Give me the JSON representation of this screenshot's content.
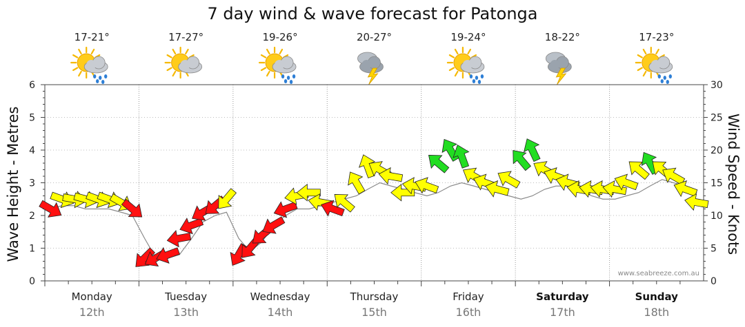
{
  "chart_data": {
    "type": "line",
    "title": "7 day wind & wave forecast for Patonga",
    "ylabel_left": "Wave Height - Metres",
    "ylabel_right": "Wind Speed - Knots",
    "ylim_left": [
      0,
      6
    ],
    "ylim_right": [
      0,
      30
    ],
    "yticks_left": [
      "0",
      "1",
      "2",
      "3",
      "4",
      "5",
      "6"
    ],
    "yticks_right": [
      "0",
      "5",
      "10",
      "15",
      "20",
      "25",
      "30"
    ],
    "grid": true,
    "watermark": "www.seabreeze.com.au",
    "days": [
      {
        "name": "Monday",
        "date": "12th",
        "temp": "17-21°",
        "icon": "sun-cloud-rain-icon",
        "bold": false
      },
      {
        "name": "Tuesday",
        "date": "13th",
        "temp": "17-27°",
        "icon": "sun-cloud-icon",
        "bold": false
      },
      {
        "name": "Wednesday",
        "date": "14th",
        "temp": "19-26°",
        "icon": "sun-cloud-rain-icon",
        "bold": false
      },
      {
        "name": "Thursday",
        "date": "15th",
        "temp": "20-27°",
        "icon": "cloud-storm-icon",
        "bold": false
      },
      {
        "name": "Friday",
        "date": "16th",
        "temp": "19-24°",
        "icon": "sun-cloud-rain-icon",
        "bold": false
      },
      {
        "name": "Saturday",
        "date": "17th",
        "temp": "18-22°",
        "icon": "cloud-storm-icon",
        "bold": true
      },
      {
        "name": "Sunday",
        "date": "18th",
        "temp": "17-23°",
        "icon": "sun-cloud-rain-icon",
        "bold": true
      }
    ],
    "wave_height": {
      "name": "Wave Height",
      "unit": "m",
      "x_days": [
        0,
        0.12,
        0.25,
        0.37,
        0.5,
        0.62,
        0.75,
        0.87,
        1.0,
        1.12,
        1.25,
        1.37,
        1.5,
        1.62,
        1.75,
        1.87,
        2.0,
        2.12,
        2.25,
        2.37,
        2.5,
        2.62,
        2.75,
        2.87,
        3.0,
        3.12,
        3.25,
        3.37,
        3.5,
        3.62,
        3.75,
        3.87,
        4.0,
        4.12,
        4.25,
        4.37,
        4.5,
        4.62,
        4.75,
        4.87,
        5.0,
        5.12,
        5.25,
        5.37,
        5.5,
        5.62,
        5.75,
        5.87,
        6.0,
        6.12,
        6.25,
        6.37,
        6.5,
        6.62,
        6.75,
        6.87
      ],
      "values": [
        2.2,
        2.3,
        2.3,
        2.2,
        2.2,
        2.2,
        2.1,
        2.0,
        1.3,
        0.7,
        0.7,
        0.8,
        1.3,
        1.8,
        2.0,
        2.1,
        1.3,
        0.9,
        1.2,
        1.7,
        2.0,
        2.2,
        2.2,
        2.3,
        2.4,
        2.5,
        2.6,
        2.8,
        3.0,
        2.9,
        2.8,
        2.7,
        2.6,
        2.7,
        2.9,
        3.0,
        2.9,
        2.8,
        2.7,
        2.6,
        2.5,
        2.6,
        2.8,
        2.9,
        2.9,
        2.8,
        2.6,
        2.5,
        2.5,
        2.6,
        2.7,
        2.9,
        3.1,
        3.0,
        2.9,
        2.7
      ]
    },
    "wind": {
      "name": "Wind Speed",
      "unit": "knots",
      "x_days": [
        0,
        0.12,
        0.25,
        0.37,
        0.5,
        0.62,
        0.75,
        0.87,
        1.0,
        1.12,
        1.25,
        1.37,
        1.5,
        1.62,
        1.75,
        1.87,
        2.0,
        2.12,
        2.25,
        2.37,
        2.5,
        2.62,
        2.75,
        2.87,
        3.0,
        3.12,
        3.25,
        3.37,
        3.5,
        3.62,
        3.75,
        3.87,
        4.0,
        4.12,
        4.25,
        4.37,
        4.5,
        4.62,
        4.75,
        4.87,
        5.0,
        5.12,
        5.25,
        5.37,
        5.5,
        5.62,
        5.75,
        5.87,
        6.0,
        6.12,
        6.25,
        6.37,
        6.5,
        6.62,
        6.75,
        6.87
      ],
      "values": [
        11,
        12.5,
        12.5,
        12.5,
        12.5,
        12.5,
        12,
        11,
        3.5,
        3.5,
        4,
        6.5,
        8.5,
        10.5,
        11.5,
        12.5,
        4,
        5,
        7,
        8.5,
        11,
        13,
        13.5,
        12,
        11,
        12,
        15,
        17.5,
        17,
        16,
        13.5,
        14.5,
        14.5,
        18,
        20,
        19,
        16,
        15,
        14,
        15.5,
        18.5,
        20,
        17,
        16,
        15,
        14,
        14,
        14,
        14,
        15,
        17,
        18,
        17,
        16,
        14,
        12
      ],
      "direction_deg": [
        300,
        290,
        280,
        285,
        290,
        290,
        300,
        310,
        45,
        60,
        70,
        80,
        70,
        60,
        50,
        40,
        30,
        40,
        50,
        60,
        70,
        80,
        90,
        100,
        110,
        130,
        150,
        160,
        120,
        100,
        90,
        100,
        110,
        130,
        150,
        160,
        120,
        110,
        105,
        120,
        140,
        155,
        120,
        110,
        105,
        100,
        100,
        100,
        100,
        110,
        130,
        150,
        130,
        120,
        110,
        100
      ]
    },
    "wind_color_bands": [
      {
        "range": "0-12 knots",
        "color": "#ff1010"
      },
      {
        "range": "12-18 knots",
        "color": "#ffff00"
      },
      {
        "range": "18+ knots",
        "color": "#22dd22"
      }
    ]
  }
}
